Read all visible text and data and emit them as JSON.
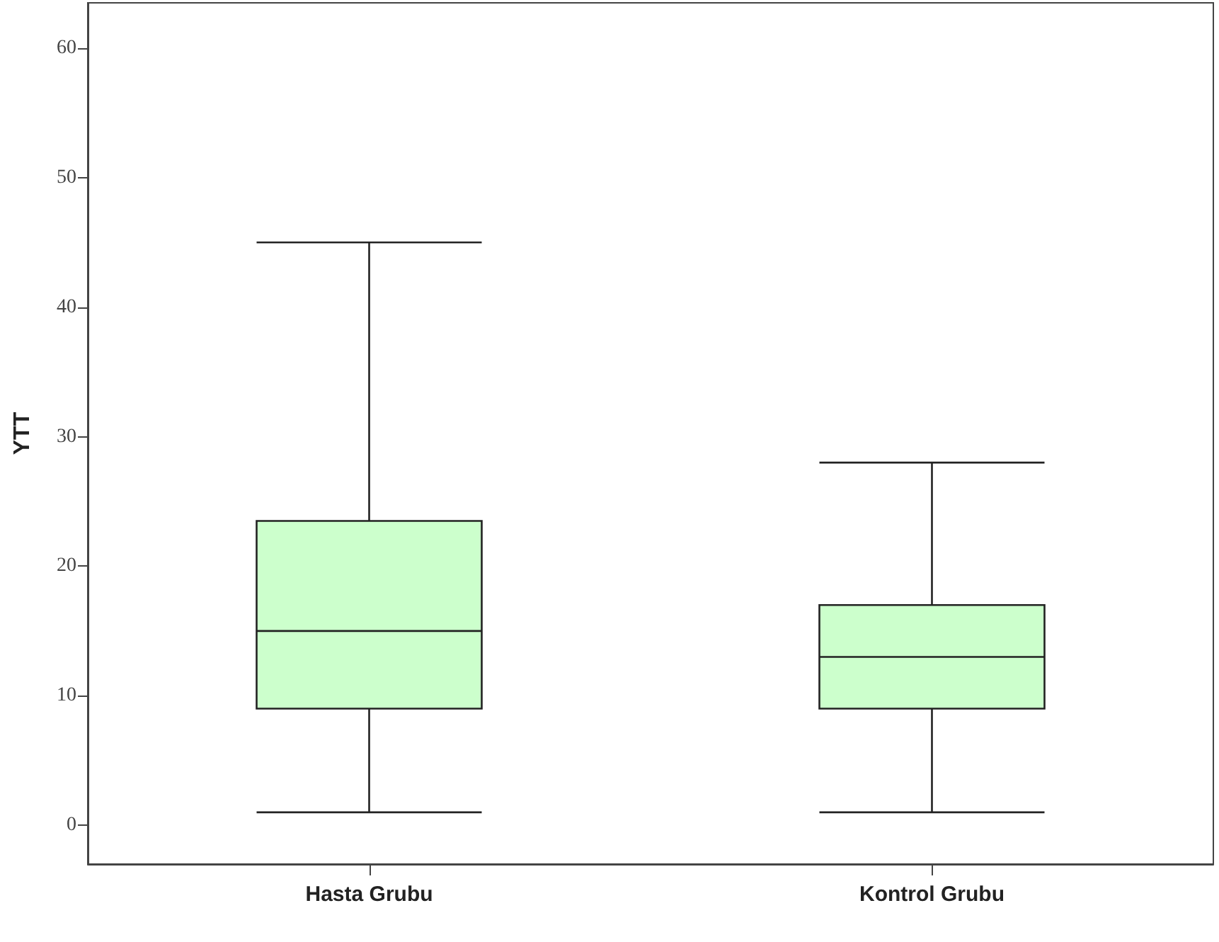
{
  "chart_data": {
    "type": "box",
    "ylabel": "YTT",
    "categories": [
      "Hasta Grubu",
      "Kontrol Grubu"
    ],
    "boxes": [
      {
        "low": 1,
        "q1": 9,
        "median": 15,
        "q3": 23.5,
        "high": 45
      },
      {
        "low": 1,
        "q1": 9,
        "median": 13,
        "q3": 17,
        "high": 28
      }
    ],
    "color": "#ccffcc",
    "ylim": [
      -3,
      63.5
    ],
    "yticks": [
      0,
      10,
      20,
      30,
      40,
      50,
      60
    ],
    "grid": false
  }
}
